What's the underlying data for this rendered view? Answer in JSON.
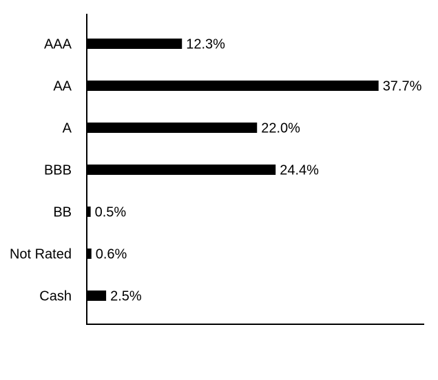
{
  "chart_data": {
    "type": "bar",
    "orientation": "horizontal",
    "categories": [
      "AAA",
      "AA",
      "A",
      "BBB",
      "BB",
      "Not Rated",
      "Cash"
    ],
    "values": [
      12.3,
      37.7,
      22.0,
      24.4,
      0.5,
      0.6,
      2.5
    ],
    "value_labels": [
      "12.3%",
      "37.7%",
      "22.0%",
      "24.4%",
      "0.5%",
      "0.6%",
      "2.5%"
    ],
    "unit": "%",
    "title": "",
    "xlabel": "",
    "ylabel": "",
    "xlim": [
      0,
      43.6
    ],
    "grid": false,
    "legend": "none",
    "bar_color": "#000000"
  }
}
